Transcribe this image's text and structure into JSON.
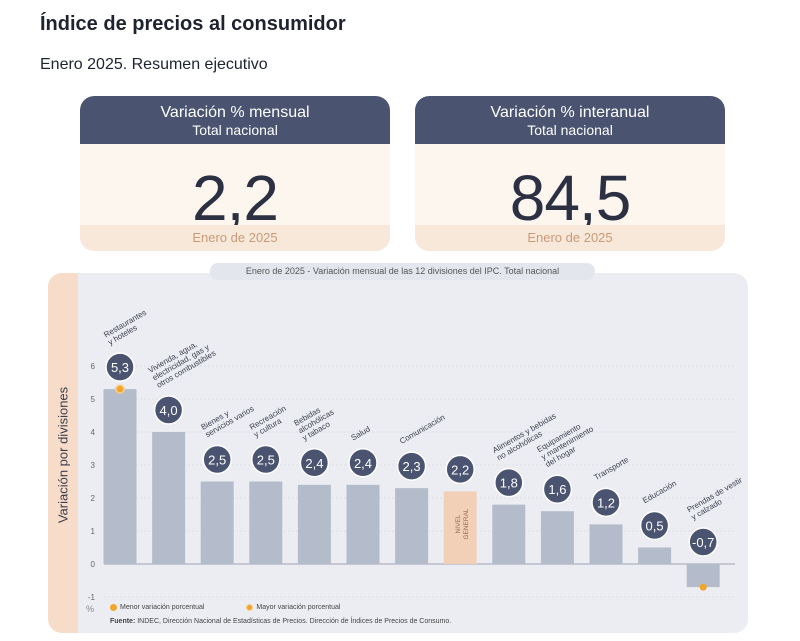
{
  "header": {
    "title": "Índice de precios al consumidor",
    "subtitle": "Enero 2025. Resumen ejecutivo"
  },
  "cards": [
    {
      "head1": "Variación % mensual",
      "head2": "Total nacional",
      "value": "2,2",
      "foot": "Enero de 2025"
    },
    {
      "head1": "Variación % interanual",
      "head2": "Total nacional",
      "value": "84,5",
      "foot": "Enero de 2025"
    }
  ],
  "chart_caption": "Enero de 2025 - Variación mensual de las 12 divisiones del IPC. Total nacional",
  "side_label": "Variación por divisiones",
  "legend": {
    "min": "Menor variación porcentual",
    "max": "Mayor variación porcentual"
  },
  "source": {
    "label": "Fuente:",
    "text": "INDEC, Dirección Nacional de Estadísticas de Precios. Dirección de Índices de Precios de Consumo."
  },
  "percent_symbol": "%",
  "colors": {
    "bar": "#b4bccb",
    "bar_general": "#f2d0b8",
    "bubble": "#4a5470",
    "marker": "#f2a52b",
    "header": "#4a5470"
  },
  "chart_data": {
    "type": "bar",
    "categories": [
      "Restaurantes y hoteles",
      "Vivienda, agua, electricidad, gas y otros combustibles",
      "Bienes y servicios varios",
      "Recreación y cultura",
      "Bebidas alcohólicas y tabaco",
      "Salud",
      "Comunicación",
      "NIVEL GENERAL",
      "Alimentos y bebidas no alcohólicas",
      "Equipamiento y mantenimiento del hogar",
      "Transporte",
      "Educación",
      "Prendas de vestir y calzado"
    ],
    "label_lines": [
      [
        "Restaurantes",
        "y hoteles"
      ],
      [
        "Vivienda, agua,",
        "electricidad, gas y",
        "otros combustibles"
      ],
      [
        "Bienes y",
        "servicios varios"
      ],
      [
        "Recreación",
        "y cultura"
      ],
      [
        "Bebidas",
        "alcohólicas",
        "y tabaco"
      ],
      [
        "Salud"
      ],
      [
        "Comunicación"
      ],
      [
        "NIVEL",
        "GENERAL"
      ],
      [
        "Alimentos y bebidas",
        "no alcohólicas"
      ],
      [
        "Equipamiento",
        "y mantenimiento",
        "del hogar"
      ],
      [
        "Transporte"
      ],
      [
        "Educación"
      ],
      [
        "Prendas de vestir",
        "y calzado"
      ]
    ],
    "values": [
      5.3,
      4.0,
      2.5,
      2.5,
      2.4,
      2.4,
      2.3,
      2.2,
      1.8,
      1.6,
      1.2,
      0.5,
      -0.7
    ],
    "value_labels": [
      "5,3",
      "4,0",
      "2,5",
      "2,5",
      "2,4",
      "2,4",
      "2,3",
      "2,2",
      "1,8",
      "1,6",
      "1,2",
      "0,5",
      "-0,7"
    ],
    "general_index": 7,
    "max_marker_index": 0,
    "min_marker_index": 12,
    "y_ticks": [
      "-1",
      "0",
      "1",
      "2",
      "3",
      "4",
      "5",
      "6"
    ],
    "ylim": [
      -1,
      6
    ],
    "grid": true
  }
}
